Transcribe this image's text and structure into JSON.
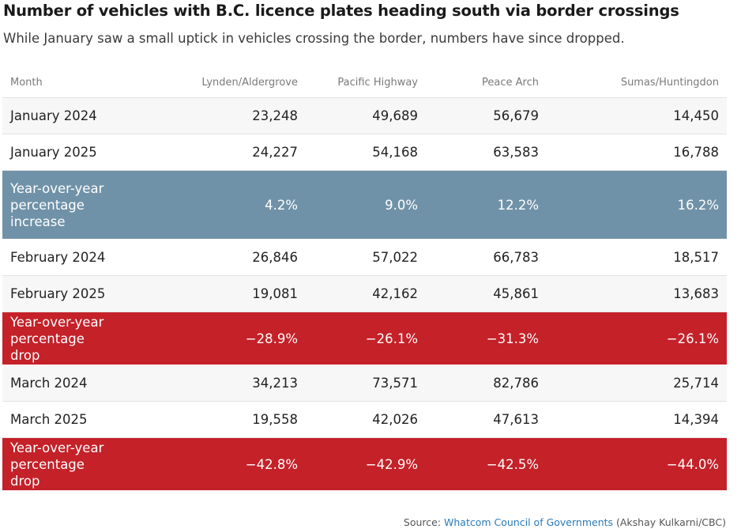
{
  "title": "Number of vehicles with B.C. licence plates heading south via border crossings",
  "subtitle": "While January saw a small uptick in vehicles crossing the border, numbers have since dropped.",
  "colors": {
    "increase_row": "#7092a8",
    "drop_row": "#c42129",
    "link": "#2a7ab8"
  },
  "chart_data": {
    "type": "table",
    "columns": [
      "Month",
      "Lynden/Aldergrove",
      "Pacific Highway",
      "Peace Arch",
      "Sumas/Huntingdon"
    ],
    "rows": [
      {
        "kind": "normal",
        "cells": [
          "January 2024",
          "23,248",
          "49,689",
          "56,679",
          "14,450"
        ]
      },
      {
        "kind": "normal",
        "cells": [
          "January 2025",
          "24,227",
          "54,168",
          "63,583",
          "16,788"
        ]
      },
      {
        "kind": "increase",
        "cells": [
          "Year-over-year percentage increase",
          "4.2%",
          "9.0%",
          "12.2%",
          "16.2%"
        ]
      },
      {
        "kind": "normal",
        "cells": [
          "February 2024",
          "26,846",
          "57,022",
          "66,783",
          "18,517"
        ]
      },
      {
        "kind": "normal",
        "cells": [
          "February 2025",
          "19,081",
          "42,162",
          "45,861",
          "13,683"
        ]
      },
      {
        "kind": "drop",
        "cells": [
          "Year-over-year percentage drop",
          "−28.9%",
          "−26.1%",
          "−31.3%",
          "−26.1%"
        ]
      },
      {
        "kind": "normal",
        "cells": [
          "March 2024",
          "34,213",
          "73,571",
          "82,786",
          "25,714"
        ]
      },
      {
        "kind": "normal",
        "cells": [
          "March 2025",
          "19,558",
          "42,026",
          "47,613",
          "14,394"
        ]
      },
      {
        "kind": "drop",
        "cells": [
          "Year-over-year percentage drop",
          "−42.8%",
          "−42.9%",
          "−42.5%",
          "−44.0%"
        ]
      }
    ]
  },
  "source": {
    "prefix": "Source: ",
    "link_text": "Whatcom Council of Governments",
    "suffix": " (Akshay Kulkarni/CBC)"
  }
}
